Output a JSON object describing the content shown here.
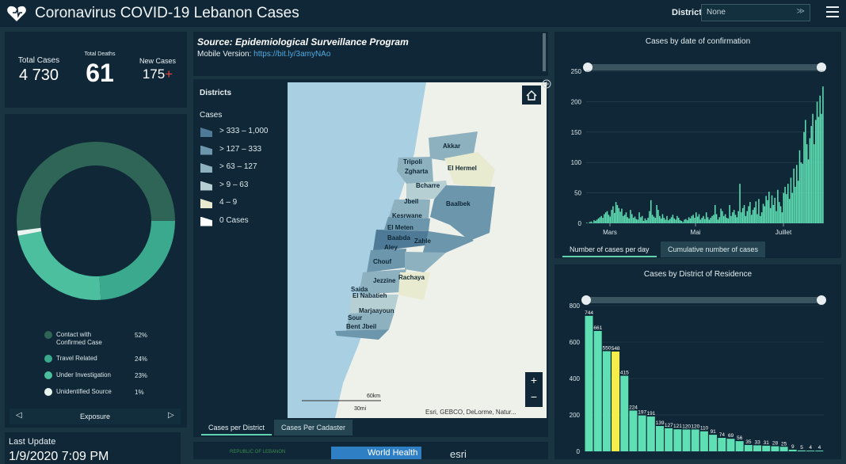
{
  "header": {
    "title": "Coronavirus COVID-19 Lebanon Cases",
    "district_label": "District",
    "district_value": "None"
  },
  "totals": {
    "total_cases_label": "Total Cases",
    "total_cases": "4 730",
    "total_deaths_label": "Total Deaths",
    "total_deaths": "61",
    "new_cases_label": "New Cases",
    "new_cases": "175"
  },
  "exposure": {
    "nav_label": "Exposure",
    "legend": [
      {
        "label_line1": "Contact with",
        "label_line2": "Confirmed Case",
        "pct": "52%",
        "color": "#2f6556"
      },
      {
        "label_line1": "Travel Related",
        "label_line2": "",
        "pct": "24%",
        "color": "#3aa98d"
      },
      {
        "label_line1": "Under Investigation",
        "label_line2": "",
        "pct": "23%",
        "color": "#4cbf9f"
      },
      {
        "label_line1": "Unidentified Source",
        "label_line2": "",
        "pct": "1%",
        "color": "#e8f4f0"
      }
    ]
  },
  "last_update": {
    "label": "Last Update",
    "value": "1/9/2020 7:09 PM"
  },
  "source": {
    "title": "Source: Epidemiological Surveillance Program",
    "mobile_label": "Mobile Version:",
    "mobile_link": "https://bit.ly/3amyNAo"
  },
  "map": {
    "legend_title": "Districts",
    "legend_subtitle": "Cases",
    "legend_items": [
      {
        "label": "> 333 – 1,000",
        "color": "#4e7a97"
      },
      {
        "label": "> 127 – 333",
        "color": "#6b96ac"
      },
      {
        "label": "> 63 – 127",
        "color": "#8eb1bf"
      },
      {
        "label": "> 9 – 63",
        "color": "#b6cfd3"
      },
      {
        "label": "4 – 9",
        "color": "#e8ebcf"
      },
      {
        "label": "0 Cases",
        "color": "#ffffff"
      }
    ],
    "districts": [
      "Akkar",
      "Tripoli",
      "Zgharta",
      "El Hermel",
      "Bcharre",
      "Jbeil",
      "Baalbek",
      "Kesrwane",
      "El Meten",
      "Baabda",
      "Zahle",
      "Aley",
      "Chouf",
      "Rachaya",
      "Jezzine",
      "Saida",
      "El Nabatieh",
      "Marjaayoun",
      "Sour",
      "Bent Jbeil"
    ],
    "scale_km": "60km",
    "scale_mi": "30mi",
    "attribution": "Esri, GEBCO, DeLorme, Natur...",
    "tab_active": "Cases per District",
    "tab_inactive": "Cases Per Cadaster",
    "footer_logos": {
      "who": "World Health",
      "esri": "esri",
      "gov": "REPUBLIC OF LEBANON"
    }
  },
  "chart_data": [
    {
      "type": "bar",
      "title": "Cases by  date of confirmation",
      "x_tick_labels": [
        "Mars",
        "Mai",
        "Juillet"
      ],
      "ylim": [
        0,
        250
      ],
      "y_ticks": [
        0,
        50,
        100,
        150,
        200,
        250
      ],
      "tab_active": "Number of cases per day",
      "tab_inactive": "Cumulative number of cases",
      "color": "#5fe0b4",
      "values": [
        1,
        0,
        2,
        3,
        1,
        5,
        4,
        6,
        8,
        10,
        12,
        9,
        15,
        18,
        20,
        14,
        11,
        22,
        28,
        17,
        35,
        30,
        25,
        19,
        24,
        12,
        14,
        18,
        10,
        8,
        22,
        15,
        9,
        11,
        7,
        6,
        18,
        10,
        12,
        4,
        8,
        5,
        9,
        20,
        38,
        14,
        11,
        9,
        30,
        22,
        12,
        8,
        15,
        9,
        6,
        12,
        5,
        7,
        10,
        14,
        8,
        6,
        12,
        9,
        5,
        4,
        2,
        6,
        7,
        5,
        10,
        8,
        12,
        14,
        9,
        18,
        11,
        15,
        6,
        9,
        12,
        7,
        18,
        10,
        6,
        9,
        12,
        14,
        30,
        15,
        6,
        10,
        24,
        20,
        12,
        15,
        9,
        8,
        30,
        12,
        18,
        22,
        14,
        10,
        20,
        65,
        18,
        25,
        30,
        12,
        20,
        28,
        35,
        14,
        22,
        26,
        36,
        15,
        40,
        12,
        18,
        32,
        28,
        45,
        38,
        52,
        25,
        46,
        30,
        42,
        20,
        55,
        35,
        28,
        18,
        50,
        60,
        48,
        65,
        40,
        75,
        50,
        90,
        60,
        96,
        70,
        120,
        100,
        98,
        150,
        170,
        130,
        105,
        140,
        160,
        180,
        130,
        170,
        200,
        175,
        210,
        180,
        225
      ]
    },
    {
      "type": "bar",
      "title": "Cases by District of Residence",
      "ylim": [
        0,
        800
      ],
      "y_ticks": [
        0,
        200,
        400,
        600,
        800
      ],
      "color": "#5fe0b4",
      "highlight_color": "#f5ed4c",
      "values": [
        744,
        661,
        550,
        548,
        415,
        224,
        197,
        191,
        139,
        127,
        121,
        120,
        120,
        110,
        91,
        74,
        69,
        56,
        35,
        33,
        31,
        28,
        25,
        9,
        5,
        4,
        4
      ],
      "highlight_index": 3
    }
  ]
}
